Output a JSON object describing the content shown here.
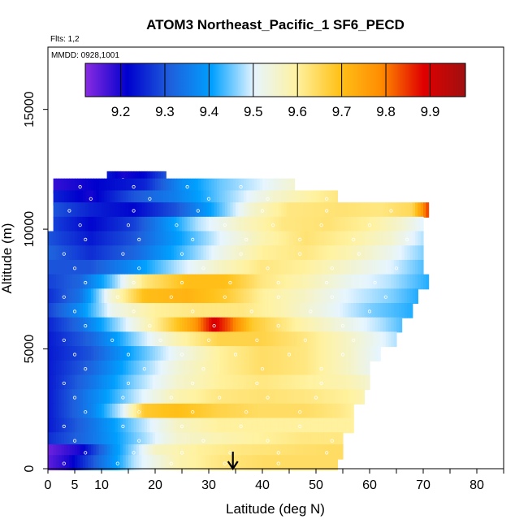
{
  "chart_data": {
    "type": "heatmap",
    "title": "ATOM3 Northeast_Pacific_1 SF6_PECD",
    "flights_label": "Flts: 1,2",
    "mmdd_label": "MMDD: 0928,1001",
    "xlabel": "Latitude (deg N)",
    "ylabel": "Altitude (m)",
    "xlim": [
      0,
      85
    ],
    "ylim": [
      0,
      17600
    ],
    "x_ticks": [
      0,
      5,
      10,
      20,
      30,
      40,
      50,
      60,
      70,
      80
    ],
    "x_minor_ticks": [
      0,
      5,
      10,
      15,
      20,
      25,
      30,
      35,
      40,
      45,
      50,
      55,
      60,
      65,
      70,
      75,
      80,
      85
    ],
    "y_ticks": [
      0,
      5000,
      10000,
      15000
    ],
    "colorbar": {
      "range": [
        9.12,
        9.98
      ],
      "ticks": [
        9.2,
        9.3,
        9.4,
        9.5,
        9.6,
        9.7,
        9.8,
        9.9
      ],
      "colors": [
        "#8a2be2",
        "#0000cd",
        "#1e5fdc",
        "#00a0ff",
        "#e6f5ff",
        "#fff2a0",
        "#ffc21a",
        "#ff8c00",
        "#e00000",
        "#a01010"
      ]
    },
    "arrow_latitude": 34.5,
    "series": [
      {
        "alt": 12100,
        "lat_min": 11,
        "lat_max": 22,
        "values": [
          [
            11,
            9.24
          ],
          [
            14,
            9.2
          ],
          [
            18,
            9.22
          ],
          [
            22,
            9.3
          ]
        ]
      },
      {
        "alt": 11800,
        "lat_min": 1,
        "lat_max": 46,
        "values": [
          [
            1,
            9.18
          ],
          [
            10,
            9.22
          ],
          [
            18,
            9.25
          ],
          [
            25,
            9.38
          ],
          [
            32,
            9.45
          ],
          [
            40,
            9.5
          ],
          [
            46,
            9.55
          ]
        ]
      },
      {
        "alt": 11300,
        "lat_min": 1,
        "lat_max": 54,
        "values": [
          [
            1,
            9.25
          ],
          [
            8,
            9.2
          ],
          [
            16,
            9.3
          ],
          [
            24,
            9.36
          ],
          [
            32,
            9.45
          ],
          [
            42,
            9.55
          ],
          [
            50,
            9.6
          ],
          [
            54,
            9.62
          ]
        ]
      },
      {
        "alt": 10800,
        "lat_min": 1,
        "lat_max": 71,
        "values": [
          [
            1,
            9.3
          ],
          [
            8,
            9.25
          ],
          [
            16,
            9.22
          ],
          [
            24,
            9.3
          ],
          [
            30,
            9.4
          ],
          [
            38,
            9.55
          ],
          [
            45,
            9.62
          ],
          [
            55,
            9.63
          ],
          [
            62,
            9.62
          ],
          [
            68,
            9.65
          ],
          [
            71,
            9.85
          ]
        ]
      },
      {
        "alt": 10200,
        "lat_min": 1,
        "lat_max": 70,
        "values": [
          [
            1,
            9.28
          ],
          [
            8,
            9.22
          ],
          [
            16,
            9.28
          ],
          [
            22,
            9.38
          ],
          [
            28,
            9.48
          ],
          [
            36,
            9.56
          ],
          [
            44,
            9.62
          ],
          [
            52,
            9.63
          ],
          [
            60,
            9.6
          ],
          [
            66,
            9.55
          ],
          [
            70,
            9.5
          ]
        ]
      },
      {
        "alt": 9600,
        "lat_min": 0,
        "lat_max": 70,
        "values": [
          [
            0,
            9.3
          ],
          [
            8,
            9.24
          ],
          [
            16,
            9.3
          ],
          [
            24,
            9.4
          ],
          [
            32,
            9.5
          ],
          [
            40,
            9.58
          ],
          [
            48,
            9.63
          ],
          [
            56,
            9.6
          ],
          [
            64,
            9.55
          ],
          [
            70,
            9.48
          ]
        ]
      },
      {
        "alt": 9000,
        "lat_min": 0,
        "lat_max": 70,
        "values": [
          [
            0,
            9.32
          ],
          [
            8,
            9.26
          ],
          [
            16,
            9.32
          ],
          [
            24,
            9.42
          ],
          [
            32,
            9.52
          ],
          [
            40,
            9.6
          ],
          [
            48,
            9.62
          ],
          [
            56,
            9.58
          ],
          [
            64,
            9.52
          ],
          [
            70,
            9.46
          ]
        ]
      },
      {
        "alt": 8400,
        "lat_min": 0,
        "lat_max": 70,
        "values": [
          [
            0,
            9.3
          ],
          [
            8,
            9.3
          ],
          [
            16,
            9.38
          ],
          [
            24,
            9.48
          ],
          [
            32,
            9.56
          ],
          [
            40,
            9.62
          ],
          [
            48,
            9.6
          ],
          [
            56,
            9.55
          ],
          [
            64,
            9.5
          ],
          [
            70,
            9.44
          ]
        ]
      },
      {
        "alt": 7800,
        "lat_min": 0,
        "lat_max": 71,
        "values": [
          [
            0,
            9.28
          ],
          [
            6,
            9.32
          ],
          [
            12,
            9.45
          ],
          [
            18,
            9.62
          ],
          [
            26,
            9.7
          ],
          [
            33,
            9.7
          ],
          [
            40,
            9.62
          ],
          [
            48,
            9.58
          ],
          [
            56,
            9.52
          ],
          [
            64,
            9.48
          ],
          [
            71,
            9.42
          ]
        ]
      },
      {
        "alt": 7200,
        "lat_min": 0,
        "lat_max": 69,
        "values": [
          [
            0,
            9.26
          ],
          [
            6,
            9.34
          ],
          [
            12,
            9.55
          ],
          [
            18,
            9.7
          ],
          [
            26,
            9.72
          ],
          [
            33,
            9.68
          ],
          [
            40,
            9.6
          ],
          [
            48,
            9.56
          ],
          [
            56,
            9.5
          ],
          [
            64,
            9.46
          ],
          [
            69,
            9.42
          ]
        ]
      },
      {
        "alt": 6600,
        "lat_min": 0,
        "lat_max": 68,
        "values": [
          [
            0,
            9.28
          ],
          [
            6,
            9.38
          ],
          [
            12,
            9.52
          ],
          [
            20,
            9.6
          ],
          [
            28,
            9.62
          ],
          [
            36,
            9.62
          ],
          [
            44,
            9.58
          ],
          [
            52,
            9.52
          ],
          [
            60,
            9.46
          ],
          [
            68,
            9.42
          ]
        ]
      },
      {
        "alt": 6000,
        "lat_min": 0,
        "lat_max": 66,
        "values": [
          [
            0,
            9.25
          ],
          [
            6,
            9.33
          ],
          [
            12,
            9.45
          ],
          [
            20,
            9.6
          ],
          [
            27,
            9.75
          ],
          [
            31,
            9.9
          ],
          [
            34,
            9.82
          ],
          [
            38,
            9.68
          ],
          [
            46,
            9.6
          ],
          [
            54,
            9.54
          ],
          [
            62,
            9.48
          ],
          [
            66,
            9.44
          ]
        ]
      },
      {
        "alt": 5400,
        "lat_min": 0,
        "lat_max": 65,
        "values": [
          [
            0,
            9.24
          ],
          [
            8,
            9.32
          ],
          [
            16,
            9.46
          ],
          [
            24,
            9.58
          ],
          [
            32,
            9.66
          ],
          [
            40,
            9.66
          ],
          [
            48,
            9.62
          ],
          [
            56,
            9.56
          ],
          [
            65,
            9.48
          ]
        ]
      },
      {
        "alt": 4800,
        "lat_min": 0,
        "lat_max": 62,
        "values": [
          [
            0,
            9.24
          ],
          [
            8,
            9.3
          ],
          [
            16,
            9.42
          ],
          [
            24,
            9.52
          ],
          [
            32,
            9.6
          ],
          [
            40,
            9.64
          ],
          [
            48,
            9.62
          ],
          [
            56,
            9.56
          ],
          [
            62,
            9.5
          ]
        ]
      },
      {
        "alt": 4200,
        "lat_min": 0,
        "lat_max": 60,
        "values": [
          [
            0,
            9.24
          ],
          [
            8,
            9.32
          ],
          [
            16,
            9.44
          ],
          [
            24,
            9.54
          ],
          [
            32,
            9.6
          ],
          [
            40,
            9.64
          ],
          [
            48,
            9.62
          ],
          [
            56,
            9.56
          ],
          [
            60,
            9.52
          ]
        ]
      },
      {
        "alt": 3600,
        "lat_min": 0,
        "lat_max": 60,
        "values": [
          [
            0,
            9.24
          ],
          [
            8,
            9.34
          ],
          [
            16,
            9.46
          ],
          [
            24,
            9.55
          ],
          [
            32,
            9.6
          ],
          [
            40,
            9.62
          ],
          [
            48,
            9.6
          ],
          [
            56,
            9.58
          ],
          [
            60,
            9.55
          ]
        ]
      },
      {
        "alt": 3000,
        "lat_min": 0,
        "lat_max": 59,
        "values": [
          [
            0,
            9.24
          ],
          [
            8,
            9.36
          ],
          [
            16,
            9.48
          ],
          [
            24,
            9.58
          ],
          [
            32,
            9.62
          ],
          [
            40,
            9.63
          ],
          [
            48,
            9.62
          ],
          [
            56,
            9.6
          ],
          [
            59,
            9.58
          ]
        ]
      },
      {
        "alt": 2400,
        "lat_min": 0,
        "lat_max": 57,
        "values": [
          [
            0,
            9.24
          ],
          [
            8,
            9.36
          ],
          [
            14,
            9.5
          ],
          [
            18,
            9.68
          ],
          [
            24,
            9.7
          ],
          [
            32,
            9.66
          ],
          [
            40,
            9.64
          ],
          [
            48,
            9.64
          ],
          [
            54,
            9.62
          ],
          [
            57,
            9.6
          ]
        ]
      },
      {
        "alt": 1800,
        "lat_min": 0,
        "lat_max": 57,
        "values": [
          [
            0,
            9.24
          ],
          [
            8,
            9.34
          ],
          [
            16,
            9.46
          ],
          [
            24,
            9.56
          ],
          [
            32,
            9.6
          ],
          [
            40,
            9.6
          ],
          [
            48,
            9.6
          ],
          [
            57,
            9.6
          ]
        ]
      },
      {
        "alt": 1200,
        "lat_min": 0,
        "lat_max": 55,
        "values": [
          [
            0,
            9.26
          ],
          [
            8,
            9.34
          ],
          [
            16,
            9.45
          ],
          [
            24,
            9.55
          ],
          [
            32,
            9.58
          ],
          [
            40,
            9.6
          ],
          [
            48,
            9.62
          ],
          [
            55,
            9.62
          ]
        ]
      },
      {
        "alt": 700,
        "lat_min": 0,
        "lat_max": 55,
        "values": [
          [
            0,
            9.14
          ],
          [
            6,
            9.2
          ],
          [
            12,
            9.38
          ],
          [
            20,
            9.56
          ],
          [
            28,
            9.6
          ],
          [
            36,
            9.62
          ],
          [
            44,
            9.63
          ],
          [
            52,
            9.64
          ],
          [
            55,
            9.64
          ]
        ]
      },
      {
        "alt": 250,
        "lat_min": 0,
        "lat_max": 54,
        "values": [
          [
            0,
            9.15
          ],
          [
            4,
            9.2
          ],
          [
            10,
            9.34
          ],
          [
            16,
            9.48
          ],
          [
            24,
            9.58
          ],
          [
            32,
            9.62
          ],
          [
            40,
            9.64
          ],
          [
            48,
            9.64
          ],
          [
            54,
            9.64
          ]
        ]
      }
    ]
  }
}
